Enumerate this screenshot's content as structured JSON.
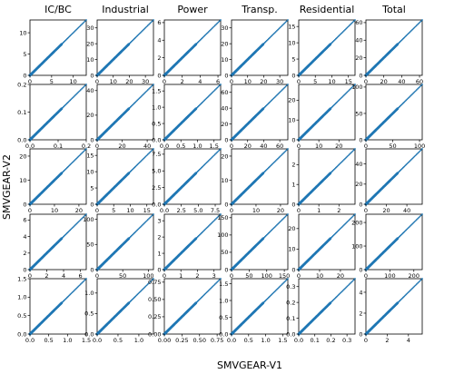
{
  "figure": {
    "xlabel": "SMVGEAR-V1",
    "ylabel": "SMVGEAR-V2",
    "column_titles": [
      "IC/BC",
      "Industrial",
      "Power",
      "Transp.",
      "Residential",
      "Total"
    ]
  },
  "colors": {
    "points": "#1f77b4",
    "one_to_one_line": "#808080",
    "axes": "#000000"
  },
  "chart_data": {
    "type": "scatter",
    "layout": "5 rows x 6 columns grid",
    "panels": [
      {
        "row": 1,
        "column": "IC/BC",
        "xlim": [
          0,
          13
        ],
        "ylim": [
          0,
          13
        ],
        "xticks": [
          0,
          5,
          10
        ],
        "yticks": [
          0,
          5,
          10
        ],
        "data_range": [
          0,
          13
        ]
      },
      {
        "row": 1,
        "column": "Industrial",
        "xlim": [
          0,
          35
        ],
        "ylim": [
          0,
          35
        ],
        "xticks": [
          0,
          10,
          20,
          30
        ],
        "yticks": [
          0,
          10,
          20,
          30
        ],
        "data_range": [
          0,
          35
        ]
      },
      {
        "row": 1,
        "column": "Power",
        "xlim": [
          0,
          6.3
        ],
        "ylim": [
          0,
          6.3
        ],
        "xticks": [
          0,
          2,
          4,
          6
        ],
        "yticks": [
          0,
          2,
          4,
          6
        ],
        "data_range": [
          0,
          6.3
        ]
      },
      {
        "row": 1,
        "column": "Transp.",
        "xlim": [
          0,
          35
        ],
        "ylim": [
          0,
          35
        ],
        "xticks": [
          0,
          10,
          20,
          30
        ],
        "yticks": [
          0,
          10,
          20,
          30
        ],
        "data_range": [
          0,
          35
        ]
      },
      {
        "row": 1,
        "column": "Residential",
        "xlim": [
          0,
          17
        ],
        "ylim": [
          0,
          17
        ],
        "xticks": [
          0,
          5,
          10,
          15
        ],
        "yticks": [
          0,
          5,
          10,
          15
        ],
        "data_range": [
          0,
          17
        ]
      },
      {
        "row": 1,
        "column": "Total",
        "xlim": [
          0,
          63
        ],
        "ylim": [
          0,
          63
        ],
        "xticks": [
          0,
          20,
          40,
          60
        ],
        "yticks": [
          0,
          20,
          40,
          60
        ],
        "data_range": [
          0,
          63
        ]
      },
      {
        "row": 2,
        "column": "IC/BC",
        "xlim": [
          0,
          0.2
        ],
        "ylim": [
          0,
          0.2
        ],
        "xticks": [
          0.0,
          0.1,
          0.2
        ],
        "yticks": [
          0.0,
          0.1,
          0.2
        ],
        "tick_decimals": 1,
        "data_range": [
          0,
          0.2
        ]
      },
      {
        "row": 2,
        "column": "Industrial",
        "xlim": [
          0,
          45
        ],
        "ylim": [
          0,
          45
        ],
        "xticks": [
          0,
          20,
          40
        ],
        "yticks": [
          0,
          20,
          40
        ],
        "data_range": [
          0,
          45
        ]
      },
      {
        "row": 2,
        "column": "Power",
        "xlim": [
          0,
          1.7
        ],
        "ylim": [
          0,
          1.7
        ],
        "xticks": [
          0.0,
          0.5,
          1.0,
          1.5
        ],
        "yticks": [
          0.0,
          0.5,
          1.0,
          1.5
        ],
        "tick_decimals": 1,
        "data_range": [
          0,
          1.7
        ]
      },
      {
        "row": 2,
        "column": "Transp.",
        "xlim": [
          0,
          70
        ],
        "ylim": [
          0,
          70
        ],
        "xticks": [
          0,
          20,
          40,
          60
        ],
        "yticks": [
          0,
          20,
          40,
          60
        ],
        "data_range": [
          0,
          70
        ]
      },
      {
        "row": 2,
        "column": "Residential",
        "xlim": [
          0,
          28
        ],
        "ylim": [
          0,
          28
        ],
        "xticks": [
          0,
          10,
          20
        ],
        "yticks": [
          0,
          10,
          20
        ],
        "data_range": [
          0,
          28
        ]
      },
      {
        "row": 2,
        "column": "Total",
        "xlim": [
          0,
          105
        ],
        "ylim": [
          0,
          105
        ],
        "xticks": [
          0,
          50,
          100
        ],
        "yticks": [
          0,
          50,
          100
        ],
        "data_range": [
          0,
          105
        ]
      },
      {
        "row": 3,
        "column": "IC/BC",
        "xlim": [
          0,
          23
        ],
        "ylim": [
          0,
          23
        ],
        "xticks": [
          0,
          10,
          20
        ],
        "yticks": [
          0,
          10,
          20
        ],
        "data_range": [
          0,
          23
        ]
      },
      {
        "row": 3,
        "column": "Industrial",
        "xlim": [
          0,
          17
        ],
        "ylim": [
          0,
          17
        ],
        "xticks": [
          0,
          5,
          10,
          15
        ],
        "yticks": [
          0,
          5,
          10,
          15
        ],
        "data_range": [
          0,
          17
        ]
      },
      {
        "row": 3,
        "column": "Power",
        "xlim": [
          0,
          8.3
        ],
        "ylim": [
          0,
          8.3
        ],
        "xticks": [
          0.0,
          2.5,
          5.0,
          7.5
        ],
        "yticks": [
          0.0,
          2.5,
          5.0,
          7.5
        ],
        "tick_decimals": 1,
        "data_range": [
          0,
          8.3
        ]
      },
      {
        "row": 3,
        "column": "Transp.",
        "xlim": [
          0,
          23
        ],
        "ylim": [
          0,
          23
        ],
        "xticks": [
          0,
          10,
          20
        ],
        "yticks": [
          0,
          10,
          20
        ],
        "data_range": [
          0,
          23
        ]
      },
      {
        "row": 3,
        "column": "Residential",
        "xlim": [
          0,
          2.8
        ],
        "ylim": [
          0,
          2.8
        ],
        "xticks": [
          0,
          1,
          2
        ],
        "yticks": [
          0,
          1,
          2
        ],
        "data_range": [
          0,
          2.8
        ]
      },
      {
        "row": 3,
        "column": "Total",
        "xlim": [
          0,
          55
        ],
        "ylim": [
          0,
          55
        ],
        "xticks": [
          0,
          20,
          40
        ],
        "yticks": [
          0,
          20,
          40
        ],
        "data_range": [
          0,
          55
        ]
      },
      {
        "row": 4,
        "column": "IC/BC",
        "xlim": [
          0,
          6.7
        ],
        "ylim": [
          0,
          6.7
        ],
        "xticks": [
          0,
          2,
          4,
          6
        ],
        "yticks": [
          0,
          2,
          4,
          6
        ],
        "data_range": [
          0,
          6.7
        ]
      },
      {
        "row": 4,
        "column": "Industrial",
        "xlim": [
          0,
          110
        ],
        "ylim": [
          0,
          110
        ],
        "xticks": [
          0,
          50,
          100
        ],
        "yticks": [
          0,
          50,
          100
        ],
        "data_range": [
          0,
          110
        ]
      },
      {
        "row": 4,
        "column": "Power",
        "xlim": [
          0,
          3.4
        ],
        "ylim": [
          0,
          3.4
        ],
        "xticks": [
          0,
          1,
          2,
          3
        ],
        "yticks": [
          0,
          1,
          2,
          3
        ],
        "data_range": [
          0,
          3.4
        ]
      },
      {
        "row": 4,
        "column": "Transp.",
        "xlim": [
          0,
          160
        ],
        "ylim": [
          0,
          160
        ],
        "xticks": [
          0,
          50,
          100,
          150
        ],
        "yticks": [
          0,
          50,
          100,
          150
        ],
        "data_range": [
          0,
          160
        ]
      },
      {
        "row": 4,
        "column": "Residential",
        "xlim": [
          0,
          27
        ],
        "ylim": [
          0,
          27
        ],
        "xticks": [
          0,
          10,
          20
        ],
        "yticks": [
          0,
          10,
          20
        ],
        "data_range": [
          0,
          27
        ]
      },
      {
        "row": 4,
        "column": "Total",
        "xlim": [
          0,
          235
        ],
        "ylim": [
          0,
          235
        ],
        "xticks": [
          0,
          100,
          200
        ],
        "yticks": [
          0,
          100,
          200
        ],
        "data_range": [
          0,
          235
        ]
      },
      {
        "row": 5,
        "column": "IC/BC",
        "xlim": [
          0,
          1.5
        ],
        "ylim": [
          0,
          1.5
        ],
        "xticks": [
          0.0,
          0.5,
          1.0,
          1.5
        ],
        "yticks": [
          0.0,
          0.5,
          1.0,
          1.5
        ],
        "tick_decimals": 1,
        "data_range": [
          0,
          1.5
        ]
      },
      {
        "row": 5,
        "column": "Industrial",
        "xlim": [
          0,
          1.35
        ],
        "ylim": [
          0,
          1.35
        ],
        "xticks": [
          0.0,
          0.5,
          1.0
        ],
        "yticks": [
          0.0,
          0.5,
          1.0
        ],
        "tick_decimals": 1,
        "data_range": [
          0,
          1.35
        ]
      },
      {
        "row": 5,
        "column": "Power",
        "xlim": [
          0,
          0.8
        ],
        "ylim": [
          0,
          0.8
        ],
        "xticks": [
          0.0,
          0.25,
          0.5,
          0.75
        ],
        "yticks": [
          0.0,
          0.25,
          0.5,
          0.75
        ],
        "tick_decimals": 2,
        "data_range": [
          0,
          0.8
        ]
      },
      {
        "row": 5,
        "column": "Transp.",
        "xlim": [
          0,
          1.65
        ],
        "ylim": [
          0,
          1.65
        ],
        "xticks": [
          0.0,
          0.5,
          1.0,
          1.5
        ],
        "yticks": [
          0.0,
          0.5,
          1.0,
          1.5
        ],
        "tick_decimals": 1,
        "data_range": [
          0,
          1.65
        ]
      },
      {
        "row": 5,
        "column": "Residential",
        "xlim": [
          0,
          0.35
        ],
        "ylim": [
          0,
          0.35
        ],
        "xticks": [
          0.0,
          0.1,
          0.2,
          0.3
        ],
        "yticks": [
          0.0,
          0.1,
          0.2,
          0.3
        ],
        "tick_decimals": 1,
        "data_range": [
          0,
          0.35
        ]
      },
      {
        "row": 5,
        "column": "Total",
        "xlim": [
          0,
          5.3
        ],
        "ylim": [
          0,
          5.3
        ],
        "xticks": [
          0,
          2,
          4
        ],
        "yticks": [
          0,
          2,
          4
        ],
        "data_range": [
          0,
          5.3
        ]
      }
    ]
  }
}
